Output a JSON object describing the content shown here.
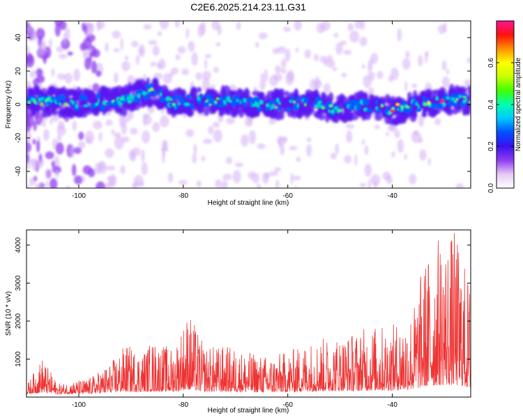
{
  "page_title": "C2E6.2025.214.23.11.G31",
  "chart_data": [
    {
      "type": "heatmap",
      "title": "C2E6.2025.214.23.11.G31",
      "xlabel": "Height of straight line (km)",
      "ylabel": "Frequency (Hz)",
      "xlim": [
        -110,
        -25
      ],
      "ylim": [
        -50,
        50
      ],
      "xticks": [
        -100,
        -80,
        -60,
        -40
      ],
      "yticks": [
        40,
        20,
        0,
        -20,
        -40
      ],
      "colorbar": {
        "label": "Normalized spectral amplitude",
        "range": [
          0,
          0.8
        ],
        "ticks": [
          0.0,
          0.2,
          0.4,
          0.6
        ],
        "colors": [
          "#ffffff",
          "#e6c8f5",
          "#8f3df0",
          "#3a10f0",
          "#0050ff",
          "#00c8ff",
          "#00ffb0",
          "#40ff00",
          "#c8ff00",
          "#ffff00",
          "#ff9000",
          "#ff1010",
          "#ff1493"
        ]
      },
      "ridge": [
        {
          "x": -108,
          "y": 2
        },
        {
          "x": -100,
          "y": 1
        },
        {
          "x": -92,
          "y": 2
        },
        {
          "x": -86,
          "y": 8
        },
        {
          "x": -82,
          "y": 1
        },
        {
          "x": -76,
          "y": 2
        },
        {
          "x": -70,
          "y": 1
        },
        {
          "x": -64,
          "y": 0
        },
        {
          "x": -56,
          "y": 1
        },
        {
          "x": -50,
          "y": -3
        },
        {
          "x": -46,
          "y": 0
        },
        {
          "x": -40,
          "y": -4
        },
        {
          "x": -35,
          "y": 0
        },
        {
          "x": -30,
          "y": 2
        },
        {
          "x": -25,
          "y": 3
        }
      ]
    },
    {
      "type": "line",
      "xlabel": "Height of straight line (km)",
      "ylabel": "SNR (10 * v/v)",
      "xlim": [
        -110,
        -25
      ],
      "ylim": [
        0,
        4400
      ],
      "xticks": [
        -100,
        -80,
        -60,
        -40
      ],
      "yticks": [
        1000,
        2000,
        3000,
        4000
      ],
      "line_color": "#ee3333",
      "envelope": [
        {
          "x": -110,
          "y": 300
        },
        {
          "x": -107,
          "y": 1050
        },
        {
          "x": -104,
          "y": 350
        },
        {
          "x": -98,
          "y": 500
        },
        {
          "x": -94,
          "y": 900
        },
        {
          "x": -91,
          "y": 1400
        },
        {
          "x": -88,
          "y": 1200
        },
        {
          "x": -86,
          "y": 1500
        },
        {
          "x": -82,
          "y": 1300
        },
        {
          "x": -79,
          "y": 2300
        },
        {
          "x": -76,
          "y": 1350
        },
        {
          "x": -71,
          "y": 1350
        },
        {
          "x": -68,
          "y": 1200
        },
        {
          "x": -64,
          "y": 1100
        },
        {
          "x": -60,
          "y": 1200
        },
        {
          "x": -56,
          "y": 1500
        },
        {
          "x": -52,
          "y": 1600
        },
        {
          "x": -48,
          "y": 1700
        },
        {
          "x": -44,
          "y": 1900
        },
        {
          "x": -40,
          "y": 1900
        },
        {
          "x": -36,
          "y": 2400
        },
        {
          "x": -34,
          "y": 3600
        },
        {
          "x": -31,
          "y": 4300
        },
        {
          "x": -28,
          "y": 4400
        },
        {
          "x": -25,
          "y": 3000
        }
      ]
    }
  ]
}
